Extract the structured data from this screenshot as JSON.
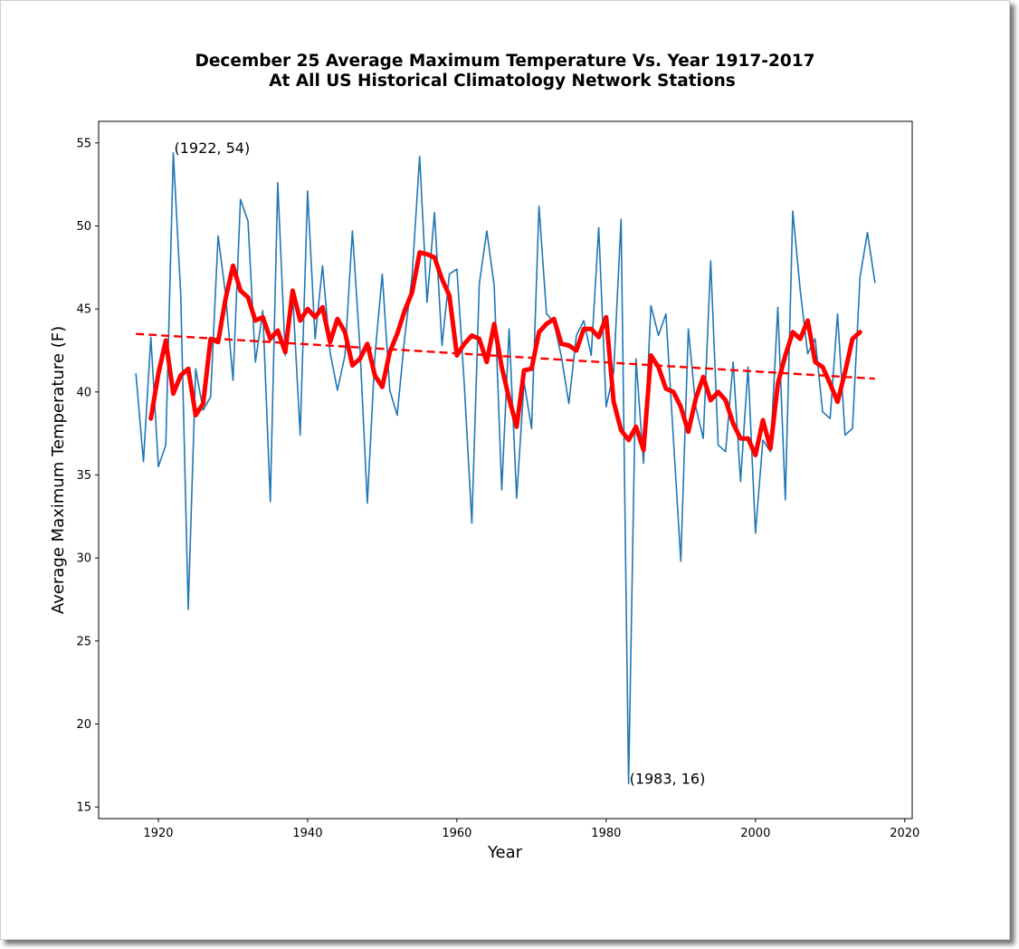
{
  "chart_data": {
    "type": "line",
    "title_line1": "December 25 Average Maximum Temperature Vs. Year 1917-2017",
    "title_line2": "At All US Historical Climatology Network Stations",
    "xlabel": "Year",
    "ylabel": "Average Maximum Temperature (F)",
    "xlim": [
      1912,
      2021
    ],
    "ylim": [
      14.3,
      56.3
    ],
    "x_ticks": [
      1920,
      1940,
      1960,
      1980,
      2000,
      2020
    ],
    "y_ticks": [
      15,
      20,
      25,
      30,
      35,
      40,
      45,
      50,
      55
    ],
    "grid": false,
    "series": [
      {
        "color": "#1f77b4",
        "style": "solid-thin",
        "x": [
          1917,
          1918,
          1919,
          1920,
          1921,
          1922,
          1923,
          1924,
          1925,
          1926,
          1927,
          1928,
          1929,
          1930,
          1931,
          1932,
          1933,
          1934,
          1935,
          1936,
          1937,
          1938,
          1939,
          1940,
          1941,
          1942,
          1943,
          1944,
          1945,
          1946,
          1947,
          1948,
          1949,
          1950,
          1951,
          1952,
          1953,
          1954,
          1955,
          1956,
          1957,
          1958,
          1959,
          1960,
          1961,
          1962,
          1963,
          1964,
          1965,
          1966,
          1967,
          1968,
          1969,
          1970,
          1971,
          1972,
          1973,
          1974,
          1975,
          1976,
          1977,
          1978,
          1979,
          1980,
          1981,
          1982,
          1983,
          1984,
          1985,
          1986,
          1987,
          1988,
          1989,
          1990,
          1991,
          1992,
          1993,
          1994,
          1995,
          1996,
          1997,
          1998,
          1999,
          2000,
          2001,
          2002,
          2003,
          2004,
          2005,
          2006,
          2007,
          2008,
          2009,
          2010,
          2011,
          2012,
          2013,
          2014,
          2015,
          2016
        ],
        "values": [
          41.1,
          35.8,
          43.3,
          35.5,
          36.8,
          54.4,
          45.9,
          26.9,
          41.4,
          38.9,
          39.7,
          49.4,
          45.9,
          40.7,
          51.6,
          50.3,
          41.8,
          44.9,
          33.4,
          52.6,
          42.2,
          45.9,
          37.4,
          52.1,
          43.2,
          47.6,
          42.4,
          40.1,
          42.2,
          49.7,
          42.7,
          33.3,
          42.1,
          47.1,
          40.1,
          38.6,
          43.3,
          47.0,
          54.2,
          45.4,
          50.8,
          42.8,
          47.1,
          47.4,
          40.4,
          32.1,
          46.5,
          49.7,
          46.4,
          34.1,
          43.8,
          33.6,
          40.6,
          37.8,
          51.2,
          44.7,
          44.2,
          42.1,
          39.3,
          43.4,
          44.3,
          42.2,
          49.9,
          39.1,
          41.2,
          50.4,
          16.4,
          42.0,
          35.7,
          45.2,
          43.4,
          44.7,
          37.2,
          29.8,
          43.8,
          39.1,
          37.2,
          47.9,
          36.8,
          36.4,
          41.8,
          34.6,
          41.5,
          31.5,
          37.1,
          36.4,
          45.1,
          33.5,
          50.9,
          46.1,
          42.3,
          43.2,
          38.8,
          38.4,
          44.7,
          37.4,
          37.8,
          46.9,
          49.6,
          46.6
        ]
      },
      {
        "color": "#ff0000",
        "style": "solid-thick",
        "x": [
          1919,
          1920,
          1921,
          1922,
          1923,
          1924,
          1925,
          1926,
          1927,
          1928,
          1929,
          1930,
          1931,
          1932,
          1933,
          1934,
          1935,
          1936,
          1937,
          1938,
          1939,
          1940,
          1941,
          1942,
          1943,
          1944,
          1945,
          1946,
          1947,
          1948,
          1949,
          1950,
          1951,
          1952,
          1953,
          1954,
          1955,
          1956,
          1957,
          1958,
          1959,
          1960,
          1961,
          1962,
          1963,
          1964,
          1965,
          1966,
          1967,
          1968,
          1969,
          1970,
          1971,
          1972,
          1973,
          1974,
          1975,
          1976,
          1977,
          1978,
          1979,
          1980,
          1981,
          1982,
          1983,
          1984,
          1985,
          1986,
          1987,
          1988,
          1989,
          1990,
          1991,
          1992,
          1993,
          1994,
          1995,
          1996,
          1997,
          1998,
          1999,
          2000,
          2001,
          2002,
          2003,
          2004,
          2005,
          2006,
          2007,
          2008,
          2009,
          2010,
          2011,
          2012,
          2013,
          2014
        ],
        "values": [
          38.4,
          41.1,
          43.1,
          39.9,
          41.0,
          41.4,
          38.6,
          39.3,
          43.2,
          43.0,
          45.6,
          47.6,
          46.1,
          45.7,
          44.3,
          44.5,
          43.2,
          43.7,
          42.4,
          46.1,
          44.3,
          45.0,
          44.5,
          45.1,
          43.0,
          44.4,
          43.6,
          41.6,
          42.0,
          42.9,
          41.0,
          40.3,
          42.4,
          43.5,
          44.9,
          46.0,
          48.4,
          48.3,
          48.1,
          46.8,
          45.8,
          42.2,
          42.9,
          43.4,
          43.2,
          41.8,
          44.1,
          41.5,
          39.6,
          37.9,
          41.3,
          41.4,
          43.6,
          44.1,
          44.4,
          42.9,
          42.8,
          42.5,
          43.8,
          43.8,
          43.3,
          44.5,
          39.4,
          37.7,
          37.1,
          37.9,
          36.5,
          42.2,
          41.5,
          40.2,
          40.0,
          39.1,
          37.6,
          39.6,
          40.9,
          39.5,
          40.0,
          39.5,
          38.1,
          37.2,
          37.2,
          36.2,
          38.3,
          36.6,
          40.5,
          42.2,
          43.6,
          43.2,
          44.3,
          41.8,
          41.5,
          40.5,
          39.4,
          41.2,
          43.2,
          43.6
        ]
      },
      {
        "color": "#ff0000",
        "style": "dashed",
        "x": [
          1917,
          2016
        ],
        "values": [
          43.5,
          40.8
        ]
      }
    ],
    "annotations": [
      {
        "text": "(1922, 54)",
        "x": 1922,
        "y": 54.4
      },
      {
        "text": "(1983, 16)",
        "x": 1983,
        "y": 16.4
      }
    ]
  }
}
